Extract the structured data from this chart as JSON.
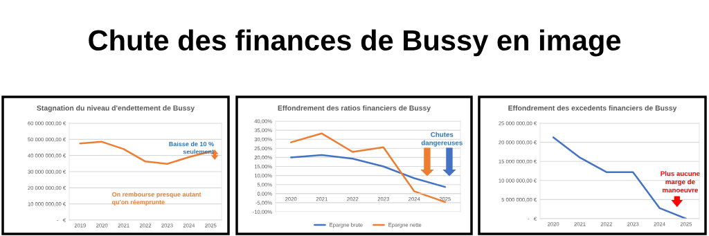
{
  "chart_data": [
    {
      "type": "line",
      "title": "Stagnation du niveau d'endettement de Bussy",
      "categories": [
        "2019",
        "2020",
        "2021",
        "2022",
        "2023",
        "2024",
        "2025"
      ],
      "series": [
        {
          "color": "#ed7d31",
          "values": [
            47500000,
            48500000,
            44000000,
            36300000,
            34800000,
            39000000,
            42500000
          ]
        }
      ],
      "ylim": [
        0,
        60000000
      ],
      "yticks": [
        {
          "value": 0,
          "label": "-   €"
        },
        {
          "value": 10000000,
          "label": "10 000 000,00 €"
        },
        {
          "value": 20000000,
          "label": "20 000 000,00 €"
        },
        {
          "value": 30000000,
          "label": "30 000 000,00 €"
        },
        {
          "value": 40000000,
          "label": "40 000 000,00 €"
        },
        {
          "value": 50000000,
          "label": "50 000 000,00 €"
        },
        {
          "value": 60000000,
          "label": "60 000 000,00 €"
        }
      ],
      "grid": "y",
      "legend": false,
      "annotations": [
        "Chute des finances de Bussy en image",
        "Baisse de 10 % seulement",
        "On rembourse presque autant qu'on réemprunte"
      ]
    },
    {
      "type": "line",
      "title": "Effondrement des ratios financiers de Bussy",
      "categories": [
        "2020",
        "2021",
        "2022",
        "2023",
        "2024",
        "2025"
      ],
      "series": [
        {
          "name": "Epargne brute",
          "color": "#4472c4",
          "values": [
            20,
            21.3,
            19.3,
            15,
            8.5,
            3.7
          ]
        },
        {
          "name": "Epargne nette",
          "color": "#ed7d31",
          "values": [
            28.3,
            33.2,
            23,
            25.6,
            1.3,
            -4.6
          ]
        }
      ],
      "ylim": [
        -10,
        40
      ],
      "yticks": [
        {
          "value": -10,
          "label": "-10,00%"
        },
        {
          "value": -5,
          "label": "-5,00%"
        },
        {
          "value": 0,
          "label": "0,00%"
        },
        {
          "value": 5,
          "label": "5,00%"
        },
        {
          "value": 10,
          "label": "10,00%"
        },
        {
          "value": 15,
          "label": "15,00%"
        },
        {
          "value": 20,
          "label": "20,00%"
        },
        {
          "value": 25,
          "label": "25,00%"
        },
        {
          "value": 30,
          "label": "30,00%"
        },
        {
          "value": 35,
          "label": "35,00%"
        },
        {
          "value": 40,
          "label": "40,00%"
        }
      ],
      "grid": "y",
      "legend": "bottom",
      "annotations": [
        "Chutes dangereuses"
      ]
    },
    {
      "type": "line",
      "title": "Effondrement des excedents financiers de Bussy",
      "categories": [
        "2020",
        "2021",
        "2022",
        "2023",
        "2024",
        "2025"
      ],
      "series": [
        {
          "color": "#4472c4",
          "values": [
            21300000,
            16000000,
            12200000,
            12200000,
            2800000,
            0
          ]
        }
      ],
      "ylim": [
        0,
        25000000
      ],
      "yticks": [
        {
          "value": 0,
          "label": "-   €"
        },
        {
          "value": 5000000,
          "label": "5 000 000,00 €"
        },
        {
          "value": 10000000,
          "label": "10 000 000,00 €"
        },
        {
          "value": 15000000,
          "label": "15 000 000,00 €"
        },
        {
          "value": 20000000,
          "label": "20 000 000,00 €"
        },
        {
          "value": 25000000,
          "label": "25 000 000,00 €"
        }
      ],
      "grid": "y",
      "legend": false,
      "annotations": [
        "Plus aucune marge de manoeuvre"
      ]
    }
  ]
}
